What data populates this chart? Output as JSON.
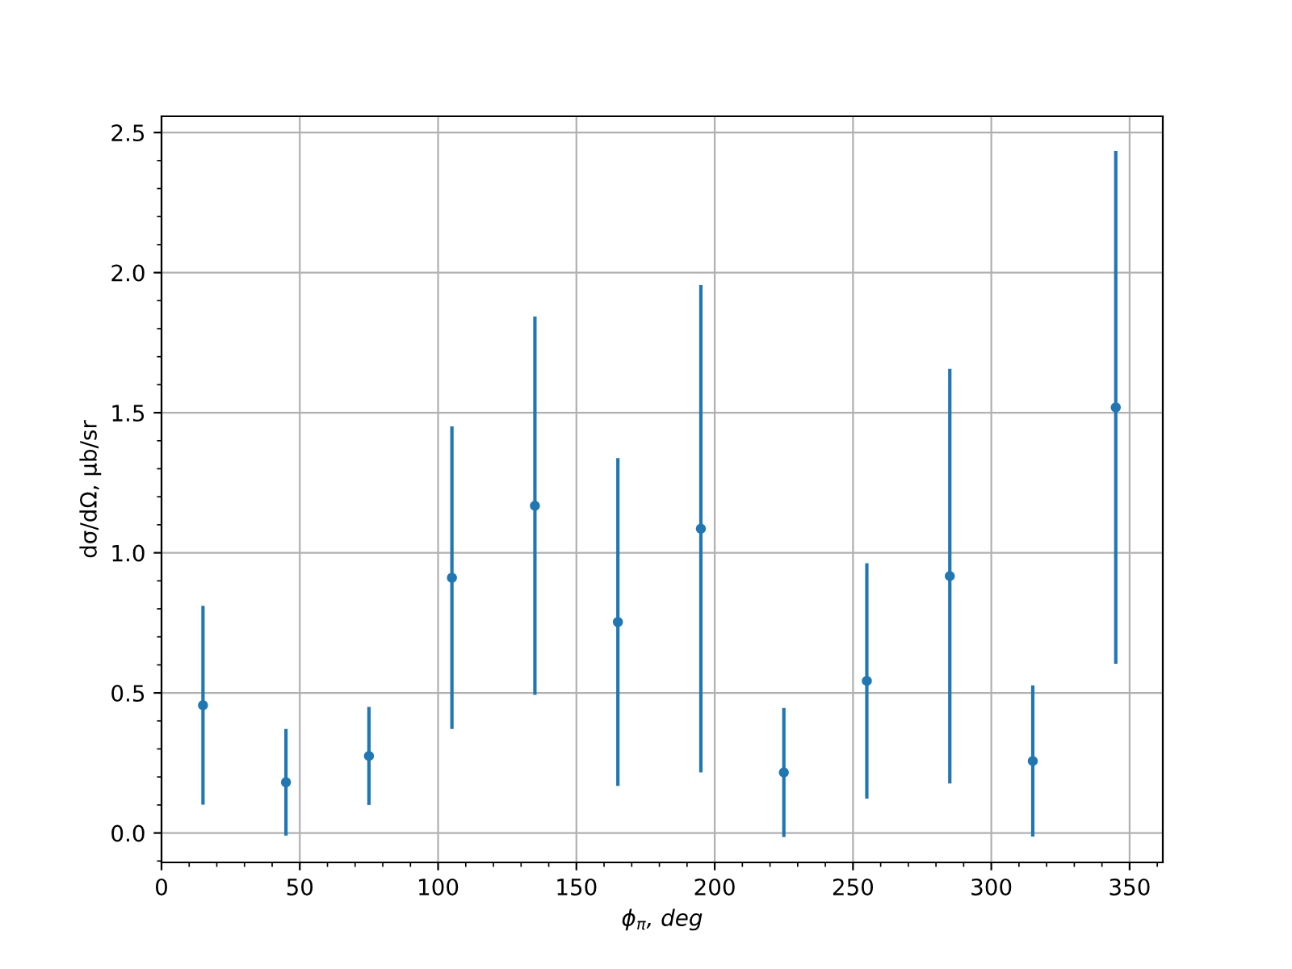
{
  "chart_data": {
    "type": "scatter",
    "xlabel": "ϕ$_{π}$, deg",
    "ylabel": "dσ/dΩ, μb/sr",
    "x": [
      15,
      45,
      75,
      105,
      135,
      165,
      195,
      225,
      255,
      285,
      315,
      345
    ],
    "values": [
      0.456,
      0.181,
      0.275,
      0.911,
      1.168,
      0.753,
      1.086,
      0.216,
      0.543,
      0.917,
      0.257,
      1.519
    ],
    "errors": [
      0.355,
      0.19,
      0.175,
      0.54,
      0.675,
      0.585,
      0.87,
      0.23,
      0.42,
      0.74,
      0.27,
      0.915
    ],
    "color": "#1f77b4",
    "marker": "circle",
    "xlim": [
      0,
      362
    ],
    "xticks": [
      0,
      50,
      100,
      150,
      200,
      250,
      300,
      350
    ],
    "ylim": [
      -0.105,
      2.558
    ],
    "yticks": [
      {
        "value": 0,
        "label": "0.0"
      },
      0.5,
      {
        "value": 1,
        "label": "1.0"
      },
      1.5,
      {
        "value": 2,
        "label": "2.0"
      },
      2.5
    ],
    "grid": true
  }
}
